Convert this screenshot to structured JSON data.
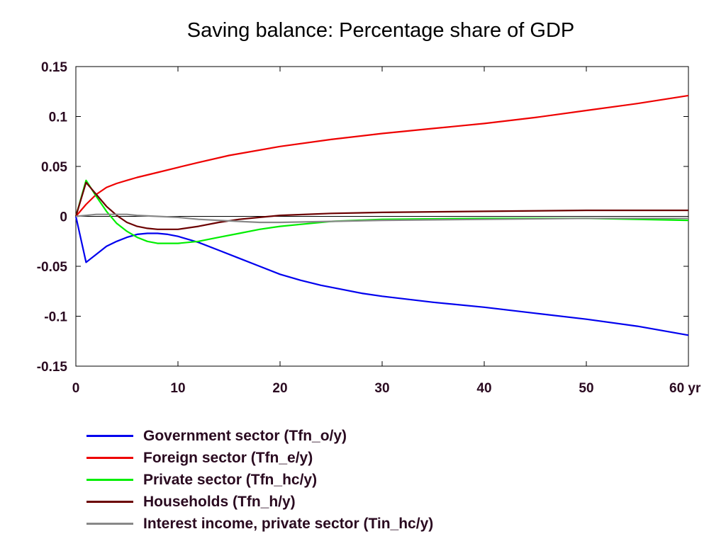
{
  "chart_data": {
    "type": "line",
    "title": "Saving balance: Percentage share of GDP",
    "xlabel": "",
    "ylabel": "",
    "x_unit_label": "yr",
    "xlim": [
      0,
      60
    ],
    "ylim": [
      -0.15,
      0.15
    ],
    "x_ticks": [
      0,
      10,
      20,
      30,
      40,
      50,
      60
    ],
    "y_ticks": [
      0.15,
      0.1,
      0.05,
      0,
      -0.05,
      -0.1,
      -0.15
    ],
    "x_tick_labels": [
      "0",
      "10",
      "20",
      "30",
      "40",
      "50",
      "60 yr"
    ],
    "y_tick_labels": [
      "0.15",
      "0.1",
      "0.05",
      "0",
      "-0.05",
      "-0.1",
      "-0.15"
    ],
    "grid": false,
    "zero_line": true,
    "legend_position": "bottom",
    "series": [
      {
        "name": "Government sector (Tfn_o/y)",
        "color": "#0000ee",
        "points": [
          [
            0,
            0
          ],
          [
            1,
            -0.046
          ],
          [
            2,
            -0.038
          ],
          [
            3,
            -0.03
          ],
          [
            4,
            -0.025
          ],
          [
            5,
            -0.021
          ],
          [
            6,
            -0.018
          ],
          [
            7,
            -0.017
          ],
          [
            8,
            -0.017
          ],
          [
            9,
            -0.018
          ],
          [
            10,
            -0.02
          ],
          [
            12,
            -0.026
          ],
          [
            14,
            -0.034
          ],
          [
            16,
            -0.042
          ],
          [
            18,
            -0.05
          ],
          [
            20,
            -0.058
          ],
          [
            22,
            -0.064
          ],
          [
            24,
            -0.069
          ],
          [
            26,
            -0.073
          ],
          [
            28,
            -0.077
          ],
          [
            30,
            -0.08
          ],
          [
            35,
            -0.086
          ],
          [
            40,
            -0.091
          ],
          [
            45,
            -0.097
          ],
          [
            50,
            -0.103
          ],
          [
            55,
            -0.11
          ],
          [
            60,
            -0.119
          ]
        ]
      },
      {
        "name": "Foreign sector (Tfn_e/y)",
        "color": "#ee0000",
        "points": [
          [
            0,
            0
          ],
          [
            1,
            0.012
          ],
          [
            2,
            0.022
          ],
          [
            3,
            0.029
          ],
          [
            4,
            0.033
          ],
          [
            5,
            0.036
          ],
          [
            6,
            0.039
          ],
          [
            8,
            0.044
          ],
          [
            10,
            0.049
          ],
          [
            12,
            0.054
          ],
          [
            15,
            0.061
          ],
          [
            20,
            0.07
          ],
          [
            25,
            0.077
          ],
          [
            30,
            0.083
          ],
          [
            35,
            0.088
          ],
          [
            40,
            0.093
          ],
          [
            45,
            0.099
          ],
          [
            50,
            0.106
          ],
          [
            55,
            0.113
          ],
          [
            60,
            0.121
          ]
        ]
      },
      {
        "name": "Private sector (Tfn_hc/y)",
        "color": "#00ee00",
        "points": [
          [
            0,
            0
          ],
          [
            1,
            0.036
          ],
          [
            2,
            0.02
          ],
          [
            3,
            0.005
          ],
          [
            4,
            -0.007
          ],
          [
            5,
            -0.015
          ],
          [
            6,
            -0.021
          ],
          [
            7,
            -0.025
          ],
          [
            8,
            -0.027
          ],
          [
            9,
            -0.027
          ],
          [
            10,
            -0.027
          ],
          [
            12,
            -0.025
          ],
          [
            14,
            -0.021
          ],
          [
            16,
            -0.017
          ],
          [
            18,
            -0.013
          ],
          [
            20,
            -0.01
          ],
          [
            22,
            -0.008
          ],
          [
            25,
            -0.005
          ],
          [
            30,
            -0.003
          ],
          [
            40,
            -0.002
          ],
          [
            50,
            -0.002
          ],
          [
            60,
            -0.004
          ]
        ]
      },
      {
        "name": "Households (Tfn_h/y)",
        "color": "#6b0000",
        "points": [
          [
            0,
            0
          ],
          [
            1,
            0.034
          ],
          [
            2,
            0.022
          ],
          [
            3,
            0.01
          ],
          [
            4,
            0.001
          ],
          [
            5,
            -0.006
          ],
          [
            6,
            -0.01
          ],
          [
            7,
            -0.012
          ],
          [
            8,
            -0.013
          ],
          [
            9,
            -0.013
          ],
          [
            10,
            -0.013
          ],
          [
            12,
            -0.01
          ],
          [
            14,
            -0.006
          ],
          [
            16,
            -0.003
          ],
          [
            18,
            -0.001
          ],
          [
            20,
            0.001
          ],
          [
            25,
            0.003
          ],
          [
            30,
            0.004
          ],
          [
            40,
            0.005
          ],
          [
            50,
            0.006
          ],
          [
            60,
            0.006
          ]
        ]
      },
      {
        "name": "Interest income, private sector (Tin_hc/y)",
        "color": "#888888",
        "points": [
          [
            0,
            0
          ],
          [
            1,
            0.001
          ],
          [
            2,
            0.002
          ],
          [
            3,
            0.002
          ],
          [
            4,
            0.002
          ],
          [
            5,
            0.002
          ],
          [
            6,
            0.001
          ],
          [
            8,
            0.0
          ],
          [
            10,
            -0.001
          ],
          [
            12,
            -0.003
          ],
          [
            14,
            -0.004
          ],
          [
            16,
            -0.005
          ],
          [
            18,
            -0.006
          ],
          [
            20,
            -0.006
          ],
          [
            25,
            -0.005
          ],
          [
            30,
            -0.004
          ],
          [
            40,
            -0.003
          ],
          [
            50,
            -0.002
          ],
          [
            60,
            -0.002
          ]
        ]
      }
    ]
  }
}
